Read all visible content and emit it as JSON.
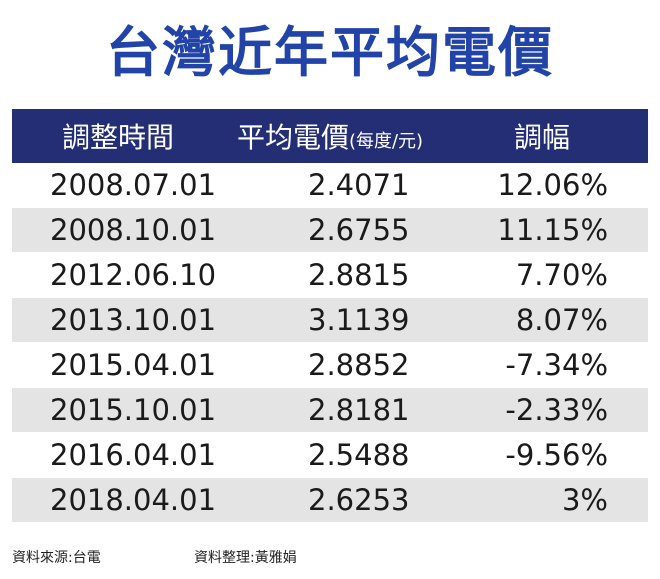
{
  "title": "台灣近年平均電價",
  "chart_data": {
    "type": "table",
    "title": "台灣近年平均電價",
    "columns": [
      "調整時間",
      "平均電價",
      "調幅"
    ],
    "unit": "(每度/元)",
    "rows": [
      {
        "date": "2008.07.01",
        "price": "2.4071",
        "change": "12.06%"
      },
      {
        "date": "2008.10.01",
        "price": "2.6755",
        "change": "11.15%"
      },
      {
        "date": "2012.06.10",
        "price": "2.8815",
        "change": "7.70%"
      },
      {
        "date": "2013.10.01",
        "price": "3.1139",
        "change": "8.07%"
      },
      {
        "date": "2015.04.01",
        "price": "2.8852",
        "change": "-7.34%"
      },
      {
        "date": "2015.10.01",
        "price": "2.8181",
        "change": "-2.33%"
      },
      {
        "date": "2016.04.01",
        "price": "2.5488",
        "change": "-9.56%"
      },
      {
        "date": "2018.04.01",
        "price": "2.6253",
        "change": "3%"
      }
    ]
  },
  "footer": {
    "source": "資料來源:台電",
    "compiled_by": "資料整理:黃雅娟"
  },
  "colors": {
    "title": "#2243a8",
    "header_bg": "#242e75",
    "stripe": "#e4e4e4"
  }
}
